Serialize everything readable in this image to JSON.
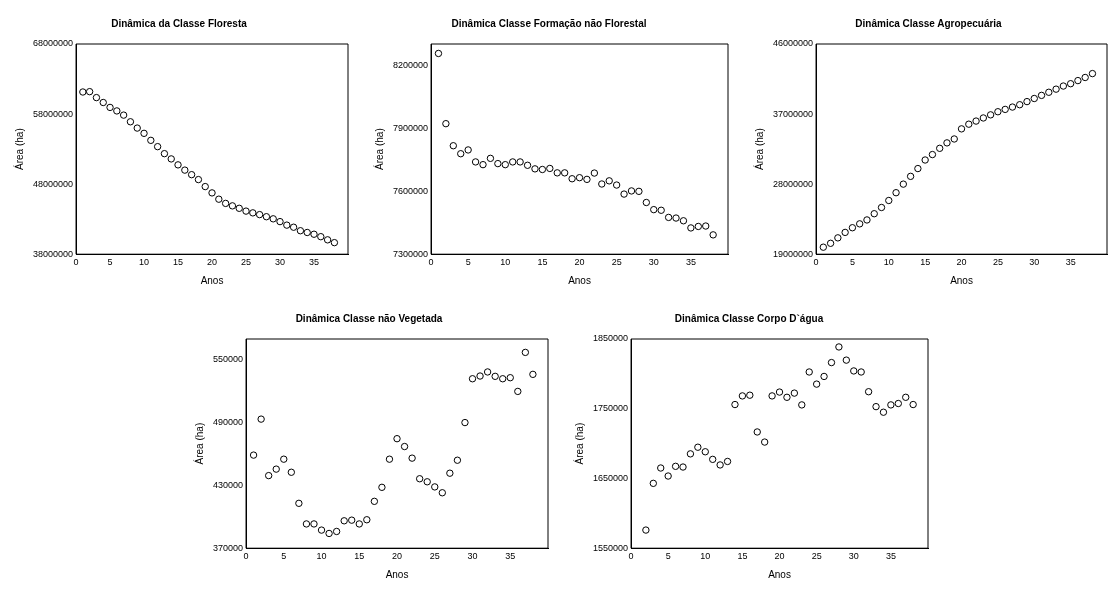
{
  "chart_data": [
    {
      "type": "scatter",
      "title": "Dinâmica da Classe Floresta",
      "xlabel": "Anos",
      "ylabel": "Área (ha)",
      "xlim": [
        0,
        40
      ],
      "xticks": [
        0,
        5,
        10,
        15,
        20,
        25,
        30,
        35
      ],
      "ylim": [
        38000000,
        68000000
      ],
      "yticks": [
        38000000,
        48000000,
        58000000,
        68000000
      ],
      "grid": false,
      "legend": false,
      "marker": "circle",
      "series": [
        {
          "color": "#000000",
          "x": [
            1,
            2,
            3,
            4,
            5,
            6,
            7,
            8,
            9,
            10,
            11,
            12,
            13,
            14,
            15,
            16,
            17,
            18,
            19,
            20,
            21,
            22,
            23,
            24,
            25,
            26,
            27,
            28,
            29,
            30,
            31,
            32,
            33,
            34,
            35,
            36,
            37,
            38
          ],
          "values": [
            61150000,
            61200000,
            60350000,
            59650000,
            58950000,
            58450000,
            57850000,
            56900000,
            56000000,
            55250000,
            54250000,
            53350000,
            52350000,
            51600000,
            50750000,
            50000000,
            49350000,
            48650000,
            47650000,
            46750000,
            45850000,
            45250000,
            44900000,
            44550000,
            44150000,
            43900000,
            43650000,
            43350000,
            43050000,
            42650000,
            42150000,
            41850000,
            41350000,
            41100000,
            40850000,
            40500000,
            40050000,
            39650000
          ]
        }
      ]
    },
    {
      "type": "scatter",
      "title": "Dinâmica Classe Formação não Florestal",
      "xlabel": "Anos",
      "ylabel": "Área (ha)",
      "xlim": [
        0,
        40
      ],
      "xticks": [
        0,
        5,
        10,
        15,
        20,
        25,
        30,
        35
      ],
      "ylim": [
        7300000,
        8300000
      ],
      "yticks": [
        7300000,
        7600000,
        7900000,
        8200000
      ],
      "grid": false,
      "legend": false,
      "marker": "circle",
      "series": [
        {
          "color": "#000000",
          "x": [
            1,
            2,
            3,
            4,
            5,
            6,
            7,
            8,
            9,
            10,
            11,
            12,
            13,
            14,
            15,
            16,
            17,
            18,
            19,
            20,
            21,
            22,
            23,
            24,
            25,
            26,
            27,
            28,
            29,
            30,
            31,
            32,
            33,
            34,
            35,
            36,
            37,
            38
          ],
          "values": [
            8255000,
            7921000,
            7816000,
            7778000,
            7796000,
            7739000,
            7726000,
            7756000,
            7731000,
            7726000,
            7739000,
            7739000,
            7723000,
            7706000,
            7703000,
            7708000,
            7687000,
            7687000,
            7659000,
            7664000,
            7656000,
            7686000,
            7634000,
            7649000,
            7629000,
            7586000,
            7601000,
            7599000,
            7546000,
            7512000,
            7509000,
            7475000,
            7472000,
            7459000,
            7425000,
            7432000,
            7434000,
            7392000
          ]
        }
      ]
    },
    {
      "type": "scatter",
      "title": "Dinâmica Classe Agropecuária",
      "xlabel": "Anos",
      "ylabel": "Área (ha)",
      "xlim": [
        0,
        40
      ],
      "xticks": [
        0,
        5,
        10,
        15,
        20,
        25,
        30,
        35
      ],
      "ylim": [
        19000000,
        46000000
      ],
      "yticks": [
        19000000,
        28000000,
        37000000,
        46000000
      ],
      "grid": false,
      "legend": false,
      "marker": "circle",
      "series": [
        {
          "color": "#000000",
          "x": [
            1,
            2,
            3,
            4,
            5,
            6,
            7,
            8,
            9,
            10,
            11,
            12,
            13,
            14,
            15,
            16,
            17,
            18,
            19,
            20,
            21,
            22,
            23,
            24,
            25,
            26,
            27,
            28,
            29,
            30,
            31,
            32,
            33,
            34,
            35,
            36,
            37,
            38
          ],
          "values": [
            19900000,
            20400000,
            21100000,
            21800000,
            22400000,
            22900000,
            23400000,
            24200000,
            25000000,
            25900000,
            26900000,
            28000000,
            29000000,
            30000000,
            31100000,
            31800000,
            32600000,
            33300000,
            33800000,
            35100000,
            35700000,
            36100000,
            36500000,
            36900000,
            37300000,
            37600000,
            37900000,
            38200000,
            38600000,
            39000000,
            39400000,
            39800000,
            40200000,
            40600000,
            40900000,
            41300000,
            41700000,
            42200000
          ]
        }
      ]
    },
    {
      "type": "scatter",
      "title": "Dinâmica Classe não Vegetada",
      "xlabel": "Anos",
      "ylabel": "Área (ha)",
      "xlim": [
        0,
        40
      ],
      "xticks": [
        0,
        5,
        10,
        15,
        20,
        25,
        30,
        35
      ],
      "ylim": [
        370000,
        570000
      ],
      "yticks": [
        370000,
        430000,
        490000,
        550000
      ],
      "grid": false,
      "legend": false,
      "marker": "circle",
      "series": [
        {
          "color": "#000000",
          "x": [
            1,
            2,
            3,
            4,
            5,
            6,
            7,
            8,
            9,
            10,
            11,
            12,
            13,
            14,
            15,
            16,
            17,
            18,
            19,
            20,
            21,
            22,
            23,
            24,
            25,
            26,
            27,
            28,
            29,
            30,
            31,
            32,
            33,
            34,
            35,
            36,
            37,
            38
          ],
          "values": [
            459000,
            493400,
            439400,
            445600,
            455100,
            442600,
            412900,
            393200,
            393200,
            387300,
            384100,
            386000,
            396200,
            396800,
            393200,
            397200,
            414800,
            428200,
            455100,
            474700,
            467200,
            456100,
            436400,
            433500,
            428600,
            423000,
            441700,
            454100,
            490100,
            532000,
            534600,
            538500,
            534300,
            532000,
            533000,
            519900,
            557200,
            536200
          ]
        }
      ]
    },
    {
      "type": "scatter",
      "title": "Dinâmica Classe Corpo D`água",
      "xlabel": "Anos",
      "ylabel": "Área (ha)",
      "xlim": [
        0,
        40
      ],
      "xticks": [
        0,
        5,
        10,
        15,
        20,
        25,
        30,
        35
      ],
      "ylim": [
        1550000,
        1850000
      ],
      "yticks": [
        1550000,
        1650000,
        1750000,
        1850000
      ],
      "grid": false,
      "legend": false,
      "marker": "circle",
      "series": [
        {
          "color": "#000000",
          "x": [
            2,
            3,
            4,
            5,
            6,
            7,
            8,
            9,
            10,
            11,
            12,
            13,
            14,
            15,
            16,
            17,
            18,
            19,
            20,
            21,
            22,
            23,
            24,
            25,
            26,
            27,
            28,
            29,
            30,
            31,
            32,
            33,
            34,
            35,
            36,
            37,
            38
          ],
          "values": [
            1576000,
            1643000,
            1665000,
            1653500,
            1667400,
            1666400,
            1685300,
            1694800,
            1688300,
            1677400,
            1669400,
            1674400,
            1756000,
            1768400,
            1769400,
            1716700,
            1702200,
            1768400,
            1773900,
            1766400,
            1772400,
            1755500,
            1802700,
            1785300,
            1796300,
            1816200,
            1838600,
            1819700,
            1804200,
            1802700,
            1774400,
            1753000,
            1745000,
            1755500,
            1757500,
            1766400,
            1756000
          ]
        }
      ]
    }
  ]
}
